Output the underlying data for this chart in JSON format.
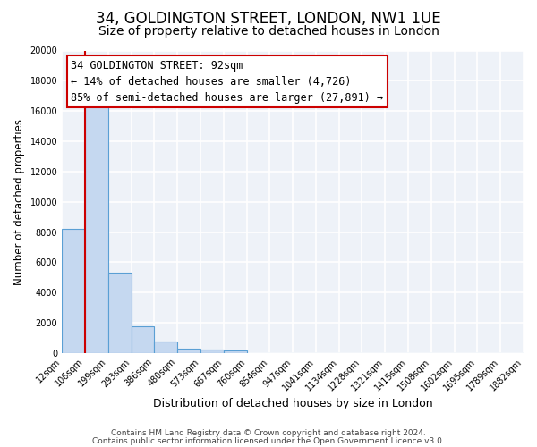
{
  "title": "34, GOLDINGTON STREET, LONDON, NW1 1UE",
  "subtitle": "Size of property relative to detached houses in London",
  "xlabel": "Distribution of detached houses by size in London",
  "ylabel": "Number of detached properties",
  "bar_values": [
    8200,
    16500,
    5300,
    1750,
    750,
    300,
    250,
    150,
    0,
    0,
    0,
    0,
    0,
    0,
    0,
    0,
    0,
    0,
    0,
    0
  ],
  "bar_labels": [
    "12sqm",
    "106sqm",
    "199sqm",
    "293sqm",
    "386sqm",
    "480sqm",
    "573sqm",
    "667sqm",
    "760sqm",
    "854sqm",
    "947sqm",
    "1041sqm",
    "1134sqm",
    "1228sqm",
    "1321sqm",
    "1415sqm",
    "1508sqm",
    "1602sqm",
    "1695sqm",
    "1789sqm",
    "1882sqm"
  ],
  "bar_color": "#c5d8f0",
  "bar_edge_color": "#5a9fd4",
  "annotation_line1": "34 GOLDINGTON STREET: 92sqm",
  "annotation_line2": "← 14% of detached houses are smaller (4,726)",
  "annotation_line3": "85% of semi-detached houses are larger (27,891) →",
  "annotation_box_color": "#ffffff",
  "annotation_box_edge_color": "#cc0000",
  "red_line_x": 0.5,
  "ylim": [
    0,
    20000
  ],
  "yticks": [
    0,
    2000,
    4000,
    6000,
    8000,
    10000,
    12000,
    14000,
    16000,
    18000,
    20000
  ],
  "footer_line1": "Contains HM Land Registry data © Crown copyright and database right 2024.",
  "footer_line2": "Contains public sector information licensed under the Open Government Licence v3.0.",
  "background_color": "#eef2f8",
  "grid_color": "#ffffff",
  "fig_bg_color": "#ffffff",
  "title_fontsize": 12,
  "subtitle_fontsize": 10,
  "xlabel_fontsize": 9,
  "ylabel_fontsize": 8.5,
  "tick_fontsize": 7,
  "annotation_fontsize": 8.5,
  "footer_fontsize": 6.5
}
